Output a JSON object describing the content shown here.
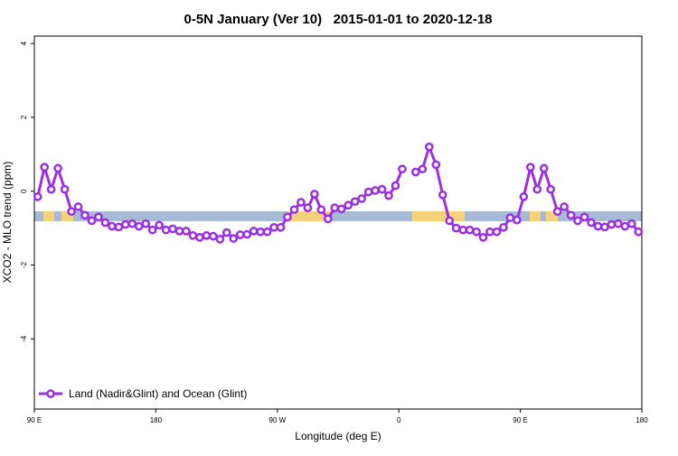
{
  "chart_data": {
    "type": "line",
    "title": "0-5N January (Ver 10)   2015-01-01 to 2020-12-18",
    "xlabel": "Longitude (deg E)",
    "ylabel": "XCO2 - MLO trend (ppm)",
    "xlim": [
      90,
      540
    ],
    "ylim": [
      -5.9,
      4.2
    ],
    "xticks": [
      {
        "value": 90,
        "label": "90 E"
      },
      180,
      {
        "value": 270,
        "label": "90 W"
      },
      {
        "value": 360,
        "label": "0"
      },
      {
        "value": 450,
        "label": "90 E"
      },
      {
        "value": 540,
        "label": "180"
      }
    ],
    "yticks": [
      -4,
      -2,
      0,
      2,
      4
    ],
    "legend": "bottom-left",
    "x": [
      92.5,
      97.5,
      102.5,
      107.5,
      112.5,
      117.5,
      122.5,
      127.5,
      132.5,
      137.5,
      142.5,
      147.5,
      152.5,
      157.5,
      162.5,
      167.5,
      172.5,
      177.5,
      182.5,
      187.5,
      192.5,
      197.5,
      202.5,
      207.5,
      212.5,
      217.5,
      222.5,
      227.5,
      232.5,
      237.5,
      242.5,
      247.5,
      252.5,
      257.5,
      262.5,
      267.5,
      272.5,
      277.5,
      282.5,
      287.5,
      292.5,
      297.5,
      302.5,
      307.5,
      312.5,
      317.5,
      322.5,
      327.5,
      332.5,
      337.5,
      342.5,
      347.5,
      352.5,
      357.5,
      362.5,
      367.5,
      372.5,
      377.5,
      382.5,
      387.5,
      392.5,
      397.5,
      402.5,
      407.5,
      412.5,
      417.5,
      422.5,
      427.5,
      432.5,
      437.5,
      442.5,
      447.5,
      452.5,
      457.5,
      462.5,
      467.5,
      472.5,
      477.5,
      482.5,
      487.5,
      492.5,
      497.5,
      502.5,
      507.5,
      512.5,
      517.5,
      522.5,
      527.5,
      532.5,
      537.5
    ],
    "series": [
      {
        "name": "Land (Nadir&Glint) and Ocean (Glint)",
        "color": "#9b30e0",
        "values": [
          -0.15,
          0.65,
          0.05,
          0.62,
          0.05,
          -0.55,
          -0.42,
          -0.65,
          -0.8,
          -0.7,
          -0.85,
          -0.95,
          -0.97,
          -0.9,
          -0.88,
          -0.95,
          -0.88,
          -1.05,
          -0.92,
          -1.05,
          -1.02,
          -1.08,
          -1.08,
          -1.2,
          -1.25,
          -1.2,
          -1.22,
          -1.3,
          -1.12,
          -1.28,
          -1.18,
          -1.17,
          -1.08,
          -1.1,
          -1.1,
          -0.98,
          -0.98,
          -0.7,
          -0.5,
          -0.3,
          -0.45,
          -0.08,
          -0.5,
          -0.75,
          -0.45,
          -0.48,
          -0.38,
          -0.28,
          -0.2,
          -0.02,
          0.02,
          0.05,
          -0.12,
          0.15,
          0.6,
          null,
          0.52,
          0.6,
          1.2,
          0.72,
          -0.1,
          -0.8,
          -1.0,
          -1.05,
          -1.05,
          -1.1,
          -1.25,
          -1.1,
          -1.1,
          -0.98,
          -0.72,
          -0.78,
          -0.15,
          0.65,
          0.05,
          0.62,
          0.05,
          -0.55,
          -0.42,
          -0.65,
          -0.8,
          -0.7,
          -0.85,
          -0.95,
          -0.97,
          -0.9,
          -0.88,
          -0.95,
          -0.88,
          -1.1
        ]
      }
    ]
  }
}
